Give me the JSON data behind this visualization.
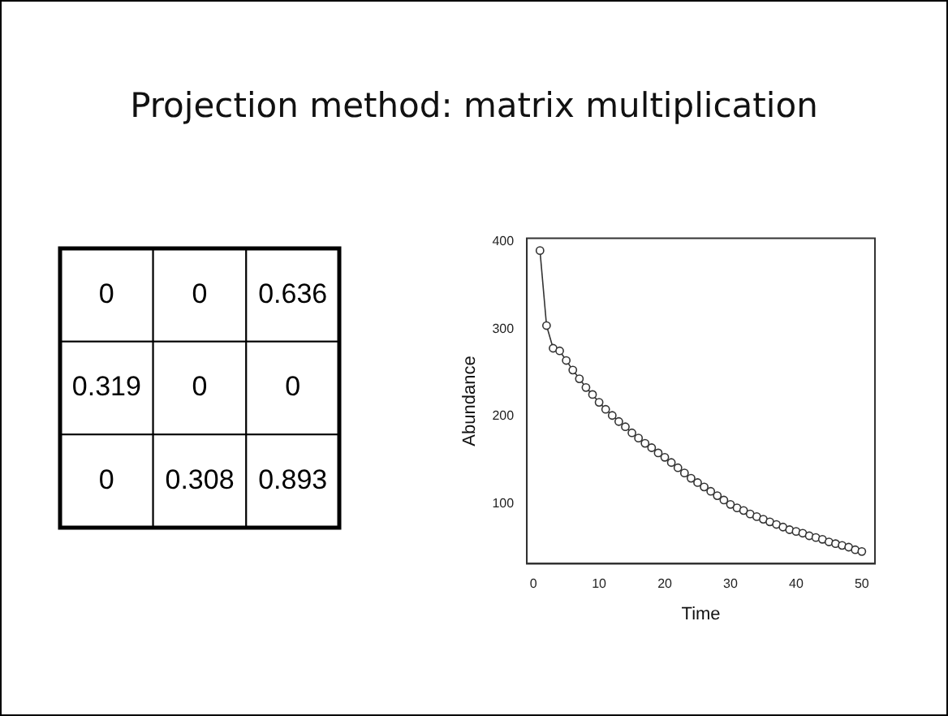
{
  "chart_data": [
    {
      "type": "heatmap",
      "title": "Projection method: matrix multiplication",
      "categories": [
        null,
        null,
        null
      ],
      "y_categories": [
        null,
        null,
        null
      ],
      "cells": [
        [
          0,
          0,
          0.636
        ],
        [
          0.319,
          0,
          0
        ],
        [
          0,
          0.308,
          0.893
        ]
      ],
      "data_labels": true
    },
    {
      "type": "line",
      "xlabel": "Time",
      "ylabel": "Abundance",
      "marker": "circle",
      "line_style": "solid",
      "grid": false,
      "legend": false,
      "xlim": [
        -1,
        52
      ],
      "xticks": [
        0,
        10,
        20,
        30,
        40,
        50
      ],
      "ylim": [
        31,
        404
      ],
      "yticks": [
        100,
        200,
        300,
        400
      ],
      "series": [
        {
          "color": "#333333",
          "x": [
            1,
            2,
            3,
            4,
            5,
            6,
            7,
            8,
            9,
            10,
            11,
            12,
            13,
            14,
            15,
            16,
            17,
            18,
            19,
            20,
            21,
            22,
            23,
            24,
            25,
            26,
            27,
            28,
            29,
            30,
            31,
            32,
            33,
            34,
            35,
            36,
            37,
            38,
            39,
            40,
            41,
            42,
            43,
            44,
            45,
            46,
            47,
            48,
            49,
            50
          ],
          "values": [
            390,
            304,
            278,
            275,
            264,
            253,
            243,
            233,
            225,
            216,
            208,
            201,
            194,
            188,
            181,
            175,
            169,
            164,
            158,
            153,
            147,
            141,
            135,
            129,
            124,
            119,
            114,
            109,
            104,
            99,
            95,
            92,
            88,
            85,
            82,
            79,
            76,
            73,
            70,
            68,
            66,
            63,
            61,
            59,
            56,
            54,
            52,
            50,
            47,
            45
          ]
        }
      ]
    }
  ]
}
